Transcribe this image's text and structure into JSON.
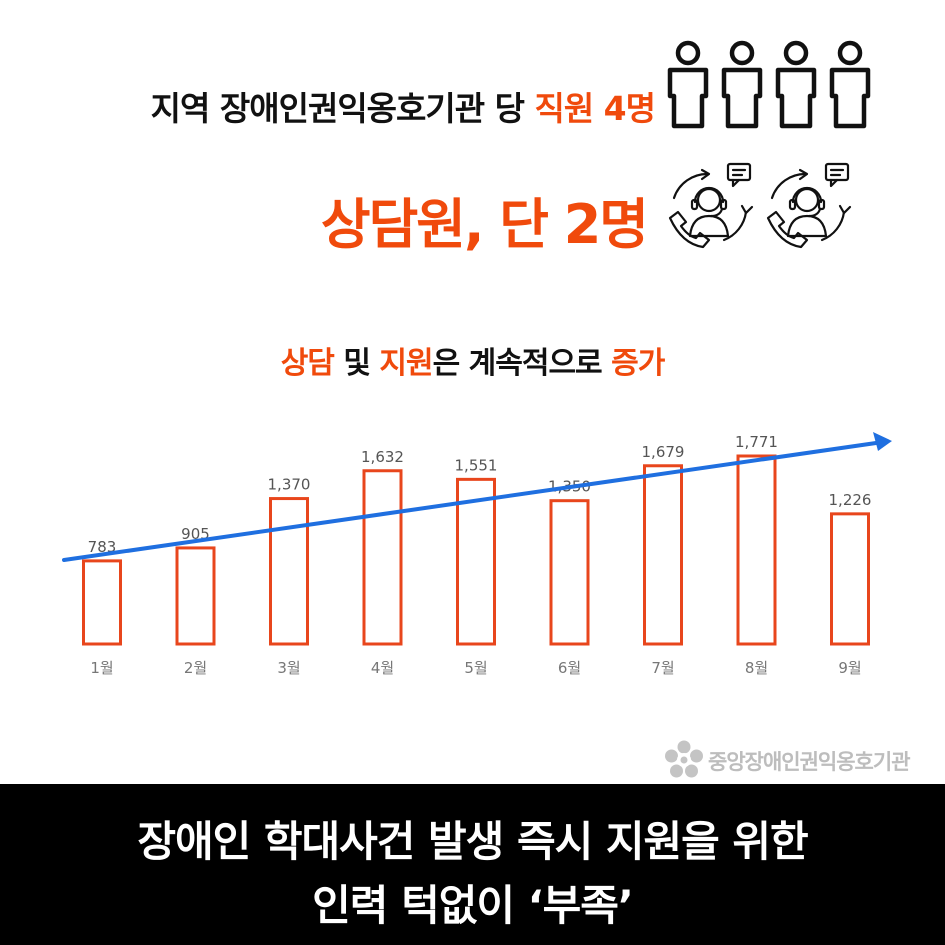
{
  "headline1": {
    "prefix": "지역 장애인권익옹호기관 당 ",
    "highlight": "직원 4명"
  },
  "headline2": {
    "text": "상담원, 단 2명"
  },
  "icons": {
    "staff": "person-outline-icon",
    "counselor": "headset-counselor-icon",
    "logo": "flower-emblem-icon"
  },
  "chart_title": {
    "parts": [
      {
        "text": "상담",
        "highlight": true
      },
      {
        "text": " 및 ",
        "highlight": false
      },
      {
        "text": "지원",
        "highlight": true
      },
      {
        "text": "은 계속적으로 ",
        "highlight": false
      },
      {
        "text": "증가",
        "highlight": true
      }
    ]
  },
  "chart_data": {
    "type": "bar",
    "categories": [
      "1월",
      "2월",
      "3월",
      "4월",
      "5월",
      "6월",
      "7월",
      "8월",
      "9월"
    ],
    "values": [
      783,
      905,
      1370,
      1632,
      1551,
      1350,
      1679,
      1771,
      1226
    ],
    "value_labels": [
      "783",
      "905",
      "1,370",
      "1,632",
      "1,551",
      "1,350",
      "1,679",
      "1,771",
      "1,226"
    ],
    "ylim": [
      0,
      2000
    ],
    "trend": "increasing",
    "grid": false,
    "bar_style": "outline"
  },
  "logo": {
    "text": "중앙장애인권익옹호기관"
  },
  "footer": {
    "line1": "장애인 학대사건 발생 즉시 지원을 위한",
    "line2": "인력 턱없이 ‘부족’"
  },
  "colors": {
    "accent": "#f04a0c",
    "bar_outline": "#e8461c",
    "trend_arrow": "#1f6fe0",
    "footer_bg": "#000000",
    "muted_text": "#777777"
  }
}
